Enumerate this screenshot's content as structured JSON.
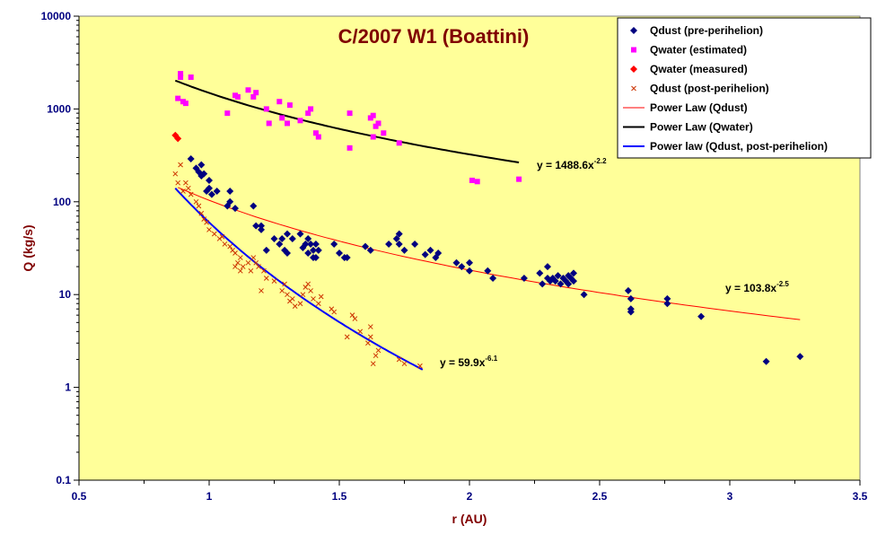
{
  "chart_data": {
    "type": "scatter",
    "title": "C/2007 W1 (Boattini)",
    "xlabel": "r (AU)",
    "ylabel": "Q (kg/s)",
    "xlim": [
      0.5,
      3.5
    ],
    "ylim": [
      0.1,
      10000
    ],
    "y_scale": "log",
    "x_ticks": [
      "0.5",
      "1",
      "1.5",
      "2",
      "2.5",
      "3",
      "3.5"
    ],
    "y_ticks": [
      "0.1",
      "1",
      "10",
      "100",
      "1000",
      "10000"
    ],
    "grid": false,
    "legend_position": "top-right",
    "colors": {
      "plot_background": "#FFFF99",
      "chart_background": "#FFFFFF",
      "title": "#800000",
      "qdust_pre": "#000080",
      "qwater_est": "#FF00FF",
      "qwater_meas": "#FF0000",
      "qdust_post": "#CC3300",
      "fit_dust": "#FF0000",
      "fit_water": "#000000",
      "fit_post": "#0000FF"
    },
    "series": [
      {
        "name": "Qdust (pre-perihelion)",
        "marker": "diamond",
        "color": "#000080",
        "points": [
          [
            0.93,
            290
          ],
          [
            0.95,
            230
          ],
          [
            0.96,
            210
          ],
          [
            0.97,
            250
          ],
          [
            0.97,
            190
          ],
          [
            0.98,
            200
          ],
          [
            0.99,
            130
          ],
          [
            1.0,
            140
          ],
          [
            1.0,
            170
          ],
          [
            1.01,
            120
          ],
          [
            1.03,
            130
          ],
          [
            1.07,
            90
          ],
          [
            1.08,
            130
          ],
          [
            1.08,
            100
          ],
          [
            1.1,
            85
          ],
          [
            1.17,
            90
          ],
          [
            1.18,
            55
          ],
          [
            1.2,
            50
          ],
          [
            1.2,
            55
          ],
          [
            1.22,
            30
          ],
          [
            1.25,
            40
          ],
          [
            1.27,
            35
          ],
          [
            1.28,
            40
          ],
          [
            1.29,
            30
          ],
          [
            1.3,
            45
          ],
          [
            1.3,
            28
          ],
          [
            1.32,
            40
          ],
          [
            1.35,
            45
          ],
          [
            1.36,
            32
          ],
          [
            1.37,
            35
          ],
          [
            1.38,
            28
          ],
          [
            1.38,
            40
          ],
          [
            1.39,
            35
          ],
          [
            1.4,
            30
          ],
          [
            1.4,
            25
          ],
          [
            1.41,
            35
          ],
          [
            1.41,
            25
          ],
          [
            1.42,
            30
          ],
          [
            1.48,
            35
          ],
          [
            1.5,
            28
          ],
          [
            1.52,
            25
          ],
          [
            1.53,
            25
          ],
          [
            1.6,
            33
          ],
          [
            1.62,
            30
          ],
          [
            1.69,
            35
          ],
          [
            1.72,
            40
          ],
          [
            1.73,
            45
          ],
          [
            1.73,
            35
          ],
          [
            1.75,
            30
          ],
          [
            1.79,
            35
          ],
          [
            1.83,
            27
          ],
          [
            1.85,
            30
          ],
          [
            1.87,
            25
          ],
          [
            1.88,
            28
          ],
          [
            1.95,
            22
          ],
          [
            1.97,
            20
          ],
          [
            2.0,
            18
          ],
          [
            2.0,
            22
          ],
          [
            2.07,
            18
          ],
          [
            2.09,
            15
          ],
          [
            2.21,
            15
          ],
          [
            2.27,
            17
          ],
          [
            2.28,
            13
          ],
          [
            2.3,
            15
          ],
          [
            2.3,
            20
          ],
          [
            2.31,
            14
          ],
          [
            2.32,
            15
          ],
          [
            2.33,
            14
          ],
          [
            2.34,
            16
          ],
          [
            2.35,
            13
          ],
          [
            2.36,
            15
          ],
          [
            2.37,
            14
          ],
          [
            2.38,
            16
          ],
          [
            2.38,
            13
          ],
          [
            2.39,
            15
          ],
          [
            2.4,
            14
          ],
          [
            2.4,
            17
          ],
          [
            2.44,
            10
          ],
          [
            2.61,
            11
          ],
          [
            2.62,
            9
          ],
          [
            2.62,
            7
          ],
          [
            2.62,
            6.5
          ],
          [
            2.76,
            8
          ],
          [
            2.76,
            9
          ],
          [
            2.89,
            5.8
          ],
          [
            3.14,
            1.9
          ],
          [
            3.27,
            2.15
          ]
        ]
      },
      {
        "name": "Qwater (estimated)",
        "marker": "square",
        "color": "#FF00FF",
        "points": [
          [
            0.88,
            1300
          ],
          [
            0.89,
            2200
          ],
          [
            0.89,
            2400
          ],
          [
            0.9,
            1200
          ],
          [
            0.91,
            1150
          ],
          [
            0.93,
            2200
          ],
          [
            1.07,
            900
          ],
          [
            1.1,
            1400
          ],
          [
            1.11,
            1350
          ],
          [
            1.15,
            1600
          ],
          [
            1.17,
            1350
          ],
          [
            1.18,
            1500
          ],
          [
            1.22,
            1000
          ],
          [
            1.23,
            700
          ],
          [
            1.27,
            1200
          ],
          [
            1.28,
            800
          ],
          [
            1.3,
            700
          ],
          [
            1.31,
            1100
          ],
          [
            1.35,
            750
          ],
          [
            1.38,
            900
          ],
          [
            1.39,
            1000
          ],
          [
            1.41,
            550
          ],
          [
            1.42,
            500
          ],
          [
            1.54,
            380
          ],
          [
            1.54,
            900
          ],
          [
            1.62,
            800
          ],
          [
            1.63,
            500
          ],
          [
            1.63,
            850
          ],
          [
            1.64,
            650
          ],
          [
            1.65,
            700
          ],
          [
            1.67,
            550
          ],
          [
            1.73,
            430
          ],
          [
            2.01,
            170
          ],
          [
            2.03,
            165
          ],
          [
            2.19,
            175
          ]
        ]
      },
      {
        "name": "Qwater (measured)",
        "marker": "diamond",
        "color": "#FF0000",
        "points": [
          [
            0.87,
            520
          ],
          [
            0.88,
            480
          ]
        ]
      },
      {
        "name": "Qdust (post-perihelion)",
        "marker": "x",
        "color": "#CC3300",
        "points": [
          [
            0.87,
            200
          ],
          [
            0.88,
            160
          ],
          [
            0.89,
            250
          ],
          [
            0.9,
            130
          ],
          [
            0.91,
            160
          ],
          [
            0.92,
            140
          ],
          [
            0.93,
            120
          ],
          [
            0.95,
            100
          ],
          [
            0.96,
            90
          ],
          [
            0.97,
            75
          ],
          [
            0.98,
            65
          ],
          [
            0.99,
            60
          ],
          [
            1.0,
            50
          ],
          [
            1.02,
            45
          ],
          [
            1.04,
            40
          ],
          [
            1.05,
            42
          ],
          [
            1.06,
            35
          ],
          [
            1.08,
            33
          ],
          [
            1.09,
            30
          ],
          [
            1.1,
            28
          ],
          [
            1.1,
            20
          ],
          [
            1.11,
            22
          ],
          [
            1.12,
            25
          ],
          [
            1.12,
            18
          ],
          [
            1.13,
            20
          ],
          [
            1.15,
            22
          ],
          [
            1.16,
            18
          ],
          [
            1.17,
            25
          ],
          [
            1.18,
            22
          ],
          [
            1.19,
            20
          ],
          [
            1.2,
            11
          ],
          [
            1.21,
            18
          ],
          [
            1.22,
            15
          ],
          [
            1.25,
            14
          ],
          [
            1.28,
            11
          ],
          [
            1.29,
            13
          ],
          [
            1.3,
            10
          ],
          [
            1.31,
            8.5
          ],
          [
            1.32,
            9
          ],
          [
            1.33,
            7.5
          ],
          [
            1.35,
            8
          ],
          [
            1.36,
            10
          ],
          [
            1.37,
            12
          ],
          [
            1.38,
            13
          ],
          [
            1.39,
            11
          ],
          [
            1.4,
            9
          ],
          [
            1.42,
            8
          ],
          [
            1.43,
            9.5
          ],
          [
            1.47,
            7
          ],
          [
            1.48,
            6.5
          ],
          [
            1.53,
            3.5
          ],
          [
            1.55,
            6
          ],
          [
            1.56,
            5.5
          ],
          [
            1.58,
            4
          ],
          [
            1.61,
            3
          ],
          [
            1.62,
            3.5
          ],
          [
            1.62,
            4.5
          ],
          [
            1.63,
            1.8
          ],
          [
            1.64,
            2.2
          ],
          [
            1.65,
            2.5
          ],
          [
            1.73,
            2.0
          ],
          [
            1.75,
            1.8
          ],
          [
            1.81,
            1.7
          ]
        ]
      }
    ],
    "fits": [
      {
        "name": "Power Law (Qdust)",
        "color": "#FF0000",
        "coef": 103.8,
        "exp": -2.5,
        "x_range": [
          0.88,
          3.27
        ],
        "label_text": "y = 103.8x",
        "label_exp": "-2.5"
      },
      {
        "name": "Power Law (Qwater)",
        "color": "#000000",
        "coef": 1488.6,
        "exp": -2.2,
        "x_range": [
          0.87,
          2.19
        ],
        "label_text": "y = 1488.6x",
        "label_exp": "-2.2"
      },
      {
        "name": "Power law (Qdust, post-perihelion)",
        "color": "#0000FF",
        "coef": 59.9,
        "exp": -6.1,
        "x_range": [
          0.87,
          1.82
        ],
        "label_text": "y = 59.9x",
        "label_exp": "-6.1"
      }
    ]
  }
}
